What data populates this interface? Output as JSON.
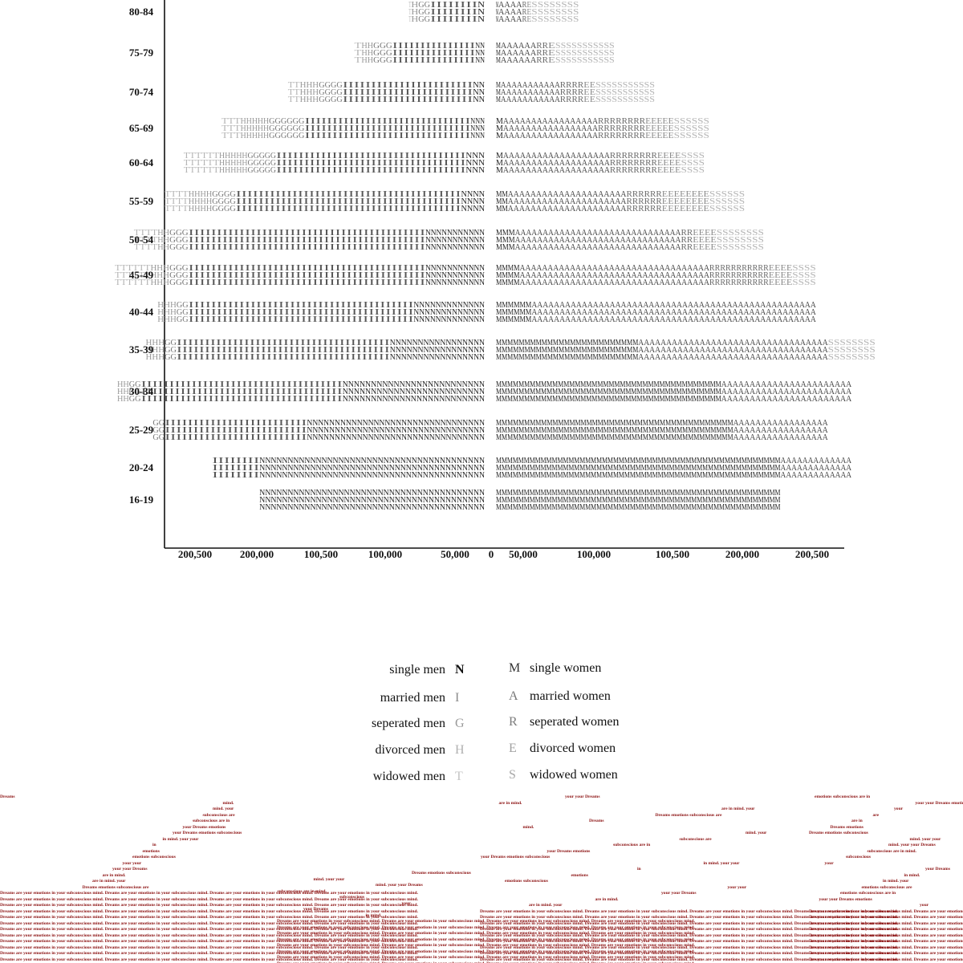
{
  "chart_data": {
    "type": "population-pyramid",
    "title": "",
    "xlabel": "",
    "ylabel": "",
    "age_groups": [
      "16-19",
      "20-24",
      "25-29",
      "30-34",
      "35-39",
      "40-44",
      "45-49",
      "50-54",
      "55-59",
      "60-64",
      "65-69",
      "70-74",
      "75-79",
      "80-84"
    ],
    "x_ticks": [
      "200,500",
      "200,000",
      "100,500",
      "100,000",
      "50,000",
      "0",
      "50,000",
      "100,000",
      "100,500",
      "200,000",
      "200,500"
    ],
    "xlim": [
      -200500,
      200500
    ],
    "men_series": [
      {
        "key": "single",
        "glyph": "N",
        "color": "#222222",
        "values": [
          95000,
          95000,
          75000,
          60000,
          40000,
          30000,
          25000,
          25000,
          10000,
          8000,
          6000,
          5000,
          4000,
          3000
        ]
      },
      {
        "key": "married",
        "glyph": "I",
        "color": "#555555",
        "values": [
          0,
          20000,
          60000,
          85000,
          90000,
          95000,
          100000,
          100000,
          95000,
          80000,
          70000,
          55000,
          35000,
          20000
        ]
      },
      {
        "key": "separated",
        "glyph": "G",
        "color": "#777777",
        "values": [
          0,
          0,
          5000,
          5000,
          5000,
          5000,
          8000,
          8000,
          10000,
          12000,
          15000,
          10000,
          8000,
          5000
        ]
      },
      {
        "key": "divorced",
        "glyph": "H",
        "color": "#999999",
        "values": [
          0,
          0,
          0,
          5000,
          8000,
          8000,
          8000,
          5000,
          10000,
          12000,
          12000,
          8000,
          5000,
          3000
        ]
      },
      {
        "key": "widowed",
        "glyph": "T",
        "color": "#b5b5b5",
        "values": [
          0,
          0,
          0,
          0,
          0,
          0,
          15000,
          10000,
          10000,
          15000,
          8000,
          5000,
          3000,
          1000
        ]
      }
    ],
    "women_series": [
      {
        "key": "single",
        "glyph": "M",
        "color": "#222222",
        "values": [
          120000,
          120000,
          100000,
          95000,
          60000,
          15000,
          10000,
          8000,
          5000,
          3000,
          3000,
          2000,
          2000,
          1000
        ]
      },
      {
        "key": "married",
        "glyph": "A",
        "color": "#444444",
        "values": [
          0,
          30000,
          40000,
          55000,
          80000,
          120000,
          80000,
          70000,
          50000,
          45000,
          40000,
          25000,
          15000,
          10000
        ]
      },
      {
        "key": "separated",
        "glyph": "R",
        "color": "#6a6a6a",
        "values": [
          0,
          0,
          0,
          0,
          0,
          0,
          25000,
          5000,
          15000,
          20000,
          20000,
          10000,
          5000,
          2000
        ]
      },
      {
        "key": "divorced",
        "glyph": "E",
        "color": "#8c8c8c",
        "values": [
          0,
          0,
          0,
          0,
          0,
          0,
          10000,
          10000,
          20000,
          10000,
          12000,
          5000,
          3000,
          2000
        ]
      },
      {
        "key": "widowed",
        "glyph": "S",
        "color": "#b5b5b5",
        "values": [
          0,
          0,
          0,
          0,
          20000,
          0,
          10000,
          20000,
          15000,
          10000,
          15000,
          25000,
          25000,
          20000
        ]
      }
    ]
  },
  "legend": {
    "men": [
      {
        "label": "single men",
        "glyph": "N",
        "color": "#111111"
      },
      {
        "label": "married men",
        "glyph": "I",
        "color": "#8a8a8a"
      },
      {
        "label": "seperated men",
        "glyph": "G",
        "color": "#9a9a9a"
      },
      {
        "label": "divorced men",
        "glyph": "H",
        "color": "#b0b0b0"
      },
      {
        "label": "widowed men",
        "glyph": "T",
        "color": "#c4c4c4"
      }
    ],
    "women": [
      {
        "label": "single women",
        "glyph": "M",
        "color": "#333333"
      },
      {
        "label": "married women",
        "glyph": "A",
        "color": "#777777"
      },
      {
        "label": "seperated women",
        "glyph": "R",
        "color": "#7d7d7d"
      },
      {
        "label": "divorced women",
        "glyph": "E",
        "color": "#a0a0a0"
      },
      {
        "label": "widowed women",
        "glyph": "S",
        "color": "#a8a8a8"
      }
    ]
  },
  "dreams": {
    "sentence": "Dreams are your emotions in your subconscious mind.",
    "color": "#8b1010"
  }
}
